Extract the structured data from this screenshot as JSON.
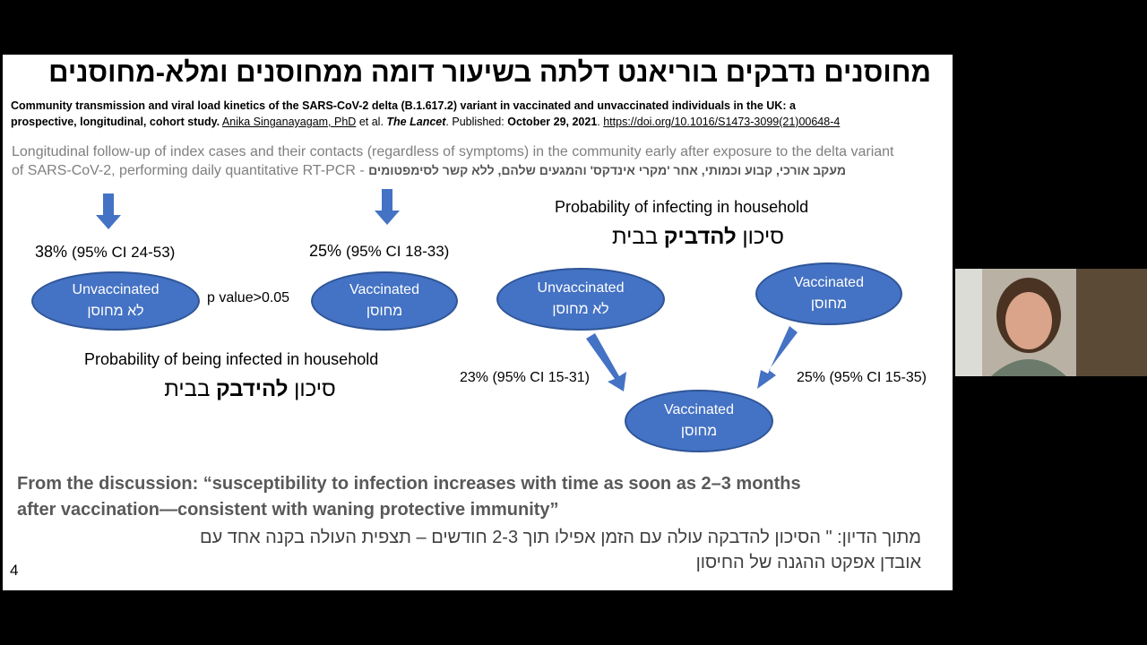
{
  "slide": {
    "title": "מחוסנים נדבקים בוריאנט דלתה בשיעור דומה ממחוסנים ומלא-מחוסנים",
    "reference": {
      "line1": "Community transmission and viral load kinetics of the SARS-CoV-2 delta (B.1.617.2) variant in vaccinated and unvaccinated individuals in the UK: a",
      "line2_bold": "prospective, longitudinal, cohort study.",
      "author": "Anika Singanayagam, PhD",
      "etal": "et al.",
      "journal": "The Lancet",
      "published_label": ". Published:",
      "date": "October 29, 2021",
      "doi": "https://doi.org/10.1016/S1473-3099(21)00648-4"
    },
    "method_line1": "Longitudinal follow-up of index cases and their contacts (regardless of symptoms) in the community early after exposure to the delta variant",
    "method_line2": "of SARS-CoV-2, performing daily quantitative RT-PCR",
    "method_dash": " - ",
    "method_hebrew": "מעקב אורכי, קבוע וכמותי, אחר 'מקרי אינדקס' והמגעים שלהם, ללא קשר לסימפטומים",
    "left": {
      "unvax_pct": "38%",
      "unvax_ci": "(95% CI 24-53)",
      "vax_pct": "25%",
      "vax_ci": "(95% CI 18-33)",
      "unvax_en": "Unvaccinated",
      "unvax_he": "לא מחוסן",
      "vax_en": "Vaccinated",
      "vax_he": "מחוסן",
      "pvalue": "p value>0.05",
      "caption_en": "Probability of being infected in household",
      "caption_he_pre": "סיכון ",
      "caption_he_bold": "להידבק",
      "caption_he_post": " בבית"
    },
    "right": {
      "caption_en": "Probability of infecting in household",
      "caption_he_pre": "סיכון ",
      "caption_he_bold": "להדביק",
      "caption_he_post": "  בבית",
      "unvax_en": "Unvaccinated",
      "unvax_he": "לא מחוסן",
      "vax_en": "Vaccinated",
      "vax_he": "מחוסן",
      "target_en": "Vaccinated",
      "target_he": "מחוסן",
      "left_pct": "23% (95% CI 15-31)",
      "right_pct": "25% (95% CI 15-35)"
    },
    "discussion_en_1": "From the discussion: “susceptibility to infection increases with time as soon as 2–3 months",
    "discussion_en_2": "after vaccination—consistent with waning protective immunity”",
    "discussion_he_1": "מתוך הדיון: \" הסיכון להדבקה עולה עם הזמן אפילו תוך 2-3 חודשים – תצפית העולה בקנה אחד עם",
    "discussion_he_2": "אובדן אפקט ההגנה של החיסון",
    "page_number": "4"
  },
  "colors": {
    "ellipse": "#4472c4",
    "arrow": "#4472c4"
  }
}
